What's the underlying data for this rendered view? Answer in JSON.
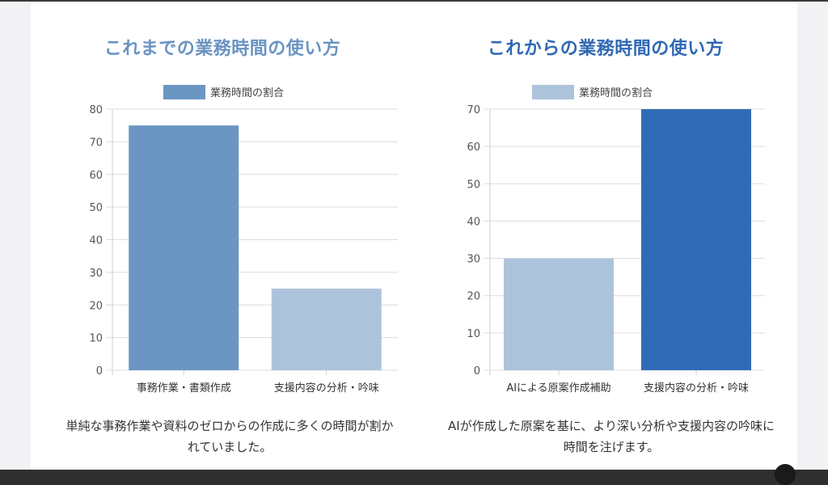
{
  "chart_data": [
    {
      "type": "bar",
      "title": "これまでの業務時間の使い方",
      "categories": [
        "事務作業・書類作成",
        "支援内容の分析・吟味"
      ],
      "series": [
        {
          "name": "業務時間の割合",
          "values": [
            75,
            25
          ]
        }
      ],
      "ylim": [
        0,
        80
      ],
      "yticks": [
        0,
        10,
        20,
        30,
        40,
        50,
        60,
        70,
        80
      ],
      "bar_colors": [
        "#6b96c3",
        "#adc3dc"
      ],
      "legend_color": "#6b96c3",
      "legend": "top",
      "grid": true
    },
    {
      "type": "bar",
      "title": "これからの業務時間の使い方",
      "categories": [
        "AIによる原案作成補助",
        "支援内容の分析・吟味"
      ],
      "series": [
        {
          "name": "業務時間の割合",
          "values": [
            30,
            70
          ]
        }
      ],
      "ylim": [
        0,
        70
      ],
      "yticks": [
        0,
        10,
        20,
        30,
        40,
        50,
        60,
        70
      ],
      "bar_colors": [
        "#adc3dc",
        "#306cb6"
      ],
      "legend_color": "#adc3dc",
      "legend": "top",
      "grid": true
    }
  ],
  "captions": [
    "単純な事務作業や資料のゼロからの作成に多くの時間が割かれていました。",
    "AIが作成した原案を基に、より深い分析や支援内容の吟味に時間を注げます。"
  ]
}
